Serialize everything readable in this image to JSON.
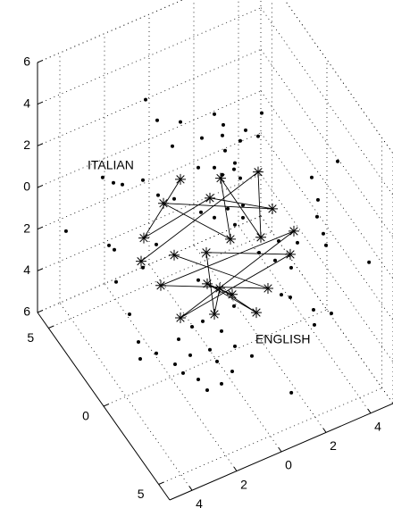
{
  "chart_data": {
    "type": "scatter3d",
    "xlim": [
      -5,
      5
    ],
    "ylim": [
      -6,
      6
    ],
    "zlim": [
      -6,
      6
    ],
    "xticks": [
      {
        "value": -4,
        "label": "4"
      },
      {
        "value": -2,
        "label": "2"
      },
      0,
      2,
      4
    ],
    "yticks": [
      {
        "value": -5,
        "label": "5"
      },
      0,
      5
    ],
    "zticks": [
      {
        "value": -6,
        "label": "6"
      },
      {
        "value": -4,
        "label": "4"
      },
      {
        "value": -2,
        "label": "2"
      },
      0,
      2,
      4,
      6
    ],
    "grid": true,
    "series": [
      {
        "color": "#000000",
        "marker": "dot",
        "x": [
          -1.64,
          -1.12,
          -0.08,
          1.44,
          1.84,
          2.84,
          3.56,
          0.88,
          1.8,
          3.4,
          2.6,
          -0.44,
          0.44,
          0.88,
          0.84,
          -0.04,
          -0.76,
          0.32,
          1.12,
          4.32,
          -4.56,
          -4.16,
          -3.24,
          -2.56,
          -1.84,
          -0.64,
          -0.04,
          0.56,
          1.24,
          1.24,
          0.88,
          4.6,
          4.56,
          -4.76,
          -4.52,
          -2.64,
          1.96,
          2.84,
          3.68,
          2.68,
          3.4,
          -4.44,
          -3.24,
          -0.76,
          0.84,
          -0.56,
          -3.84,
          -1.64,
          -1.04,
          0.28,
          2.96,
          3.36,
          4.4,
          -4.92,
          -4.12,
          -0.6,
          -2.6,
          -3.28,
          -1.72,
          -2.92,
          -2.24,
          -1.4,
          -1.2,
          -0.72,
          0.16,
          -1.84,
          3.72,
          2.96,
          4,
          3.36,
          3.48,
          -4.84,
          0.94,
          4.42,
          -3.07,
          -4.71
        ],
        "y": [
          3,
          3,
          3,
          3,
          3,
          3,
          3,
          3,
          3,
          3,
          3,
          3,
          0,
          0,
          0,
          0,
          0,
          0,
          0,
          0,
          0,
          0,
          0,
          0,
          0,
          0,
          0,
          0,
          0,
          0,
          0,
          0,
          0,
          0,
          0,
          0,
          0,
          0,
          0,
          0,
          0,
          0,
          0,
          0,
          0,
          0,
          0,
          0,
          0,
          0,
          0,
          0,
          0,
          -3,
          -3,
          -3,
          -3,
          -3,
          -3,
          -3,
          -3,
          -3,
          -3,
          -3,
          -3,
          -3,
          -3,
          -3,
          -3,
          -3,
          -3,
          -3,
          -5,
          -5,
          4,
          4
        ],
        "z": [
          4.91,
          3.68,
          3.12,
          2.79,
          2.09,
          1.37,
          1.86,
          1.9,
          1.6,
          0.82,
          0.97,
          2.12,
          3.75,
          2.95,
          2.67,
          3.16,
          3.49,
          2.65,
          2.11,
          0.67,
          4.52,
          4.25,
          4.04,
          3,
          2.49,
          1.29,
          0.76,
          0.91,
          0.76,
          0.16,
          -0.01,
          -0.54,
          -1.33,
          1.61,
          1.29,
          0.67,
          -1.85,
          -1.7,
          -2.17,
          -2.56,
          -3.24,
          -0.29,
          -0.16,
          -1.91,
          -3.9,
          -3.98,
          -2.12,
          -4.34,
          -4.02,
          -4.84,
          -4.33,
          -4.64,
          -5.72,
          -0.7,
          -1.62,
          -2.91,
          -2.41,
          -2.53,
          -2.56,
          -3.12,
          -3.74,
          -3.27,
          -4.43,
          -4.06,
          -3.73,
          -4.44,
          -3.33,
          -3.53,
          3.84,
          0.66,
          0.05,
          -1.55,
          -4.35,
          0.3,
          1.09,
          -0.73
        ]
      },
      {
        "name": "ITALIAN",
        "color": "#000000",
        "marker": "star",
        "line": true,
        "x": [
          -1.56,
          -3.2,
          -0.24,
          2.56,
          -2.32,
          0.68,
          0.24,
          2.04,
          1.92,
          -3.32
        ],
        "y": [
          0,
          0,
          0,
          0,
          0,
          0,
          0,
          0,
          0,
          0
        ],
        "z": [
          3.3,
          1.24,
          1.79,
          -0.02,
          2.5,
          -0.61,
          2.52,
          -1.15,
          2.04,
          0.18
        ]
      },
      {
        "name": "ENGLISH",
        "color": "#000000",
        "marker": "star",
        "line": true,
        "x": [
          -1.84,
          2.36,
          -2.44,
          3.52,
          -1.56,
          3.36,
          -0.4,
          -0.04,
          0.2,
          1.84,
          -0.36,
          0.76
        ],
        "y": [
          0,
          0,
          0,
          0,
          0,
          0,
          0,
          0,
          0,
          0,
          0,
          0
        ],
        "z": [
          -0.21,
          -3.75,
          -1.39,
          -1.54,
          -3.35,
          -2.58,
          -0.75,
          -3.88,
          -2.75,
          -4.67,
          -2.27,
          -3.3
        ]
      }
    ]
  }
}
